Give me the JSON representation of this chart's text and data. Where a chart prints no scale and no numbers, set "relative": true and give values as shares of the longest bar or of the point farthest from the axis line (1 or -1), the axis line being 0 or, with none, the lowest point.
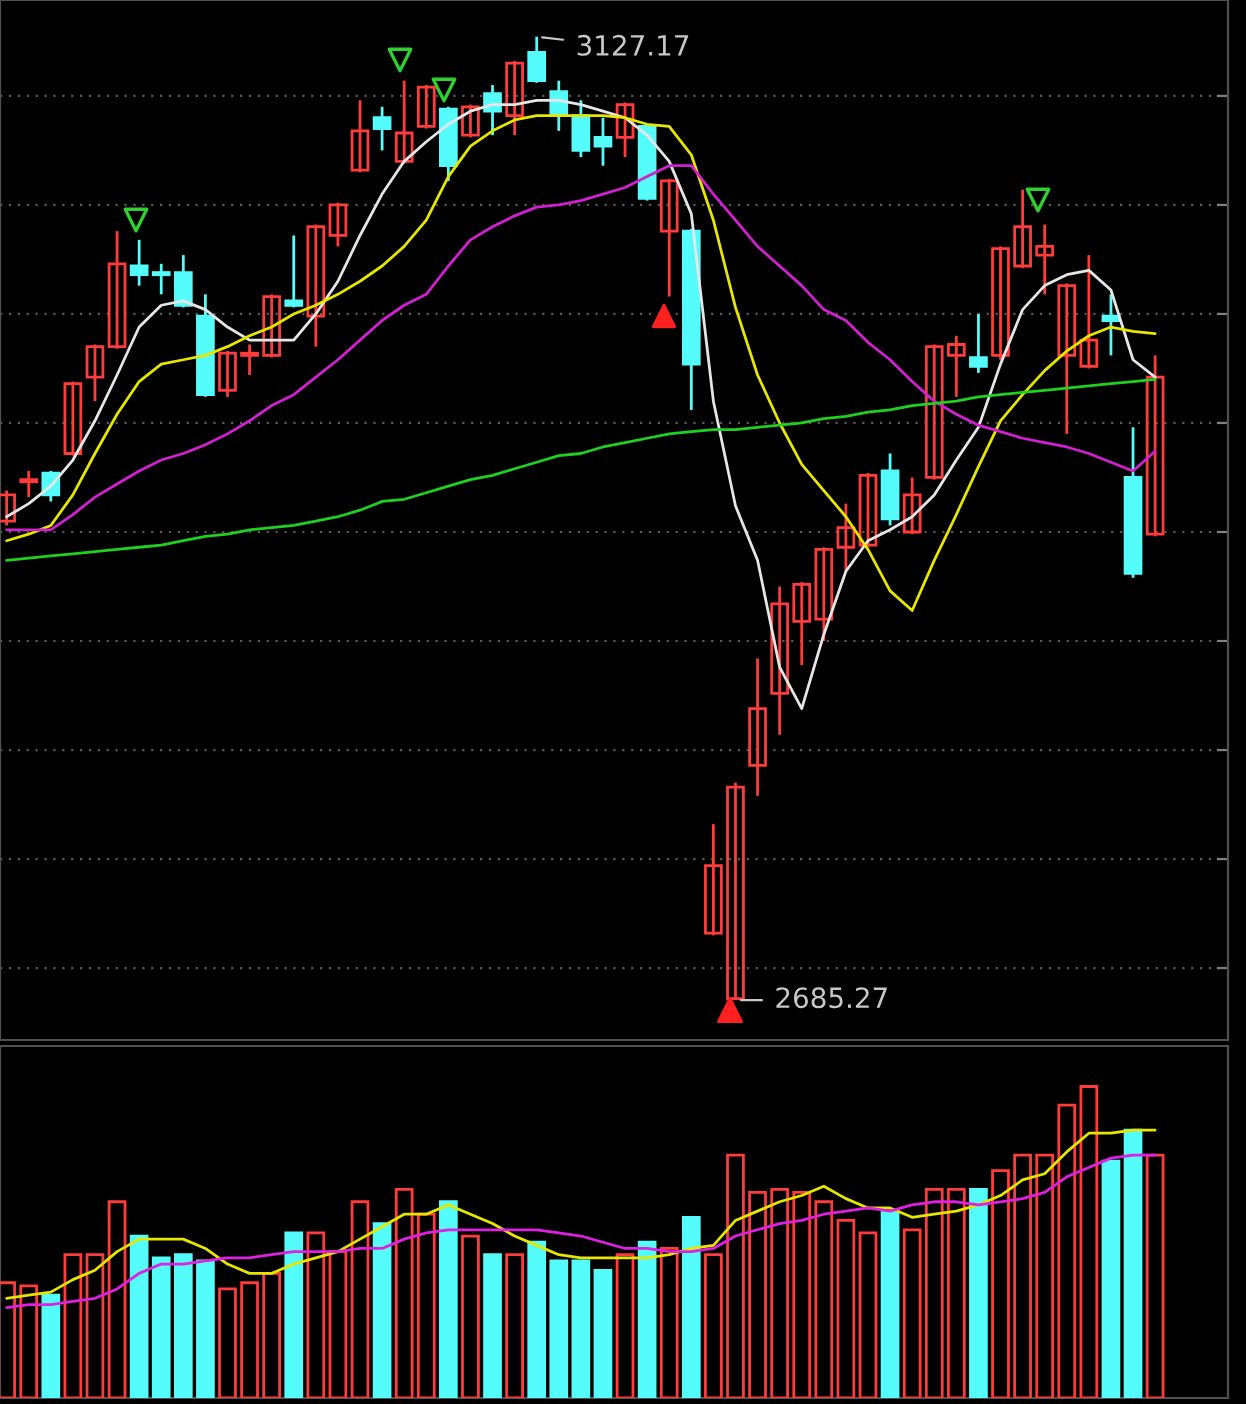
{
  "chart_data": [
    {
      "type": "candlestick",
      "categories": [
        null,
        null,
        null,
        null,
        null,
        null,
        null,
        null,
        null,
        null,
        null,
        null,
        null,
        null,
        null,
        null,
        null,
        null,
        null,
        null,
        null,
        null,
        null,
        null,
        null,
        null,
        null,
        null,
        null,
        null,
        null,
        null,
        null,
        null,
        null,
        null,
        null,
        null,
        null,
        null,
        null,
        null,
        null,
        null,
        null,
        null,
        null,
        null,
        null,
        null,
        null,
        null,
        null
      ],
      "ohlc": [
        [
          2905,
          2919,
          2903,
          2917
        ],
        [
          2923,
          2928,
          2916,
          2924
        ],
        [
          2927,
          2928,
          2914,
          2917
        ],
        [
          2936,
          2969,
          2935,
          2968
        ],
        [
          2971,
          2986,
          2960,
          2985
        ],
        [
          2985,
          3038,
          2984,
          3023
        ],
        [
          3022,
          3034,
          3013,
          3018
        ],
        [
          3019,
          3023,
          3009,
          3018
        ],
        [
          3019,
          3027,
          3003,
          3004
        ],
        [
          2999,
          3009,
          2962,
          2963
        ],
        [
          2965,
          2983,
          2962,
          2982
        ],
        [
          2981,
          2986,
          2972,
          2982
        ],
        [
          2981,
          3009,
          2980,
          3008
        ],
        [
          3006,
          3036,
          3003,
          3004
        ],
        [
          2999,
          3041,
          2985,
          3040
        ],
        [
          3036,
          3051,
          3031,
          3050
        ],
        [
          3066,
          3098,
          3065,
          3084
        ],
        [
          3090,
          3095,
          3075,
          3085
        ],
        [
          3070,
          3107,
          3069,
          3083
        ],
        [
          3086,
          3105,
          3085,
          3104
        ],
        [
          3094,
          3095,
          3061,
          3068
        ],
        [
          3082,
          3096,
          3081,
          3095
        ],
        [
          3101,
          3105,
          3082,
          3093
        ],
        [
          3091,
          3116,
          3082,
          3115
        ],
        [
          3120,
          3127.17,
          3106,
          3107
        ],
        [
          3102,
          3107,
          3084,
          3091
        ],
        [
          3091,
          3098,
          3072,
          3075
        ],
        [
          3081,
          3090,
          3068,
          3077
        ],
        [
          3081,
          3097,
          3072,
          3096
        ],
        [
          3086,
          3087,
          3052,
          3053
        ],
        [
          3038,
          3062,
          3008,
          3061
        ],
        [
          3038,
          3039,
          2956,
          2977
        ],
        [
          2716,
          2766,
          2715,
          2747
        ],
        [
          2686,
          2785,
          2685.27,
          2783
        ],
        [
          2793,
          2842,
          2779,
          2819
        ],
        [
          2826,
          2875,
          2807,
          2867
        ],
        [
          2859,
          2877,
          2839,
          2876
        ],
        [
          2860,
          2893,
          2850,
          2892
        ],
        [
          2893,
          2913,
          2882,
          2902
        ],
        [
          2894,
          2927,
          2893,
          2926
        ],
        [
          2928,
          2936,
          2903,
          2906
        ],
        [
          2900,
          2925,
          2899,
          2917
        ],
        [
          2925,
          2986,
          2924,
          2985
        ],
        [
          2981,
          2990,
          2962,
          2986
        ],
        [
          2980,
          3000,
          2973,
          2976
        ],
        [
          2981,
          3031,
          2979,
          3030
        ],
        [
          3022,
          3057,
          3021,
          3040
        ],
        [
          3027,
          3041,
          3009,
          3031
        ],
        [
          2981,
          3014,
          2945,
          3013
        ],
        [
          2976,
          3027,
          2975,
          2988
        ],
        [
          2999,
          3009,
          2981,
          2997
        ],
        [
          2925,
          2948,
          2879,
          2881
        ],
        [
          2899,
          2981,
          2898,
          2971
        ]
      ],
      "colors": [
        "#ff3c3c",
        "#ff3c3c",
        "#54fcfc",
        "#ff3c3c",
        "#ff3c3c",
        "#ff3c3c",
        "#54fcfc",
        "#54fcfc",
        "#54fcfc",
        "#54fcfc",
        "#ff3c3c",
        "#ff3c3c",
        "#ff3c3c",
        "#54fcfc",
        "#ff3c3c",
        "#ff3c3c",
        "#ff3c3c",
        "#54fcfc",
        "#ff3c3c",
        "#ff3c3c",
        "#54fcfc",
        "#ff3c3c",
        "#54fcfc",
        "#ff3c3c",
        "#54fcfc",
        "#54fcfc",
        "#54fcfc",
        "#54fcfc",
        "#ff3c3c",
        "#54fcfc",
        "#ff3c3c",
        "#54fcfc",
        "#ff3c3c",
        "#ff3c3c",
        "#ff3c3c",
        "#ff3c3c",
        "#ff3c3c",
        "#ff3c3c",
        "#ff3c3c",
        "#ff3c3c",
        "#54fcfc",
        "#ff3c3c",
        "#ff3c3c",
        "#ff3c3c",
        "#54fcfc",
        "#ff3c3c",
        "#ff3c3c",
        "#ff3c3c",
        "#ff3c3c",
        "#ff3c3c",
        "#54fcfc",
        "#54fcfc",
        "#ff3c3c"
      ],
      "series": [
        {
          "type": "line",
          "color": "#e6e6e6",
          "values": [
            2907,
            2913,
            2921,
            2933,
            2951,
            2972,
            2994,
            3004,
            3006,
            3002,
            2994,
            2988,
            2988,
            2988,
            3000,
            3015,
            3036,
            3055,
            3070,
            3079,
            3087,
            3093,
            3096,
            3096,
            3098,
            3098,
            3096,
            3093,
            3090,
            3082,
            3070,
            3046,
            2960,
            2912,
            2887,
            2838,
            2819,
            2853,
            2882,
            2896,
            2901,
            2907,
            2917,
            2933,
            2948,
            2977,
            3002,
            3013,
            3018,
            3020,
            3011,
            2979,
            2971
          ]
        },
        {
          "type": "line",
          "color": "#e6e600",
          "values": [
            2896,
            2899,
            2903,
            2917,
            2936,
            2954,
            2969,
            2977,
            2979,
            2981,
            2985,
            2990,
            2994,
            3000,
            3004,
            3009,
            3015,
            3022,
            3031,
            3043,
            3063,
            3077,
            3084,
            3089,
            3091,
            3091,
            3091,
            3091,
            3090,
            3087,
            3086,
            3073,
            3043,
            3003,
            2972,
            2950,
            2931,
            2919,
            2907,
            2892,
            2873,
            2864,
            2887,
            2908,
            2930,
            2951,
            2963,
            2974,
            2983,
            2990,
            2994,
            2992,
            2991
          ]
        },
        {
          "type": "line",
          "color": "#d020d0",
          "values": [
            2901,
            2901,
            2901,
            2908,
            2916,
            2922,
            2928,
            2933,
            2936,
            2940,
            2945,
            2951,
            2958,
            2963,
            2971,
            2979,
            2988,
            2997,
            3004,
            3009,
            3022,
            3034,
            3040,
            3045,
            3049,
            3050,
            3052,
            3055,
            3058,
            3063,
            3068,
            3068,
            3055,
            3043,
            3031,
            3022,
            3013,
            3002,
            2997,
            2987,
            2979,
            2969,
            2960,
            2954,
            2949,
            2946,
            2943,
            2941,
            2939,
            2936,
            2932,
            2928,
            2937
          ]
        },
        {
          "type": "line",
          "color": "#20d020",
          "values": [
            2887,
            2888,
            2889,
            2890,
            2891,
            2892,
            2893,
            2894,
            2896,
            2898,
            2899,
            2901,
            2902,
            2903,
            2905,
            2907,
            2910,
            2914,
            2915,
            2918,
            2921,
            2924,
            2926,
            2929,
            2932,
            2935,
            2936,
            2939,
            2941,
            2943,
            2945,
            2946,
            2947,
            2947,
            2948,
            2949,
            2950,
            2952,
            2953,
            2955,
            2956,
            2958,
            2959,
            2960,
            2962,
            2963,
            2964,
            2965,
            2966,
            2967,
            2968,
            2969,
            2970
          ]
        }
      ],
      "ylim": [
        2667,
        3144
      ],
      "yticks": [
        {
          "value": 2700,
          "label": null
        },
        {
          "value": 2750,
          "label": null
        },
        {
          "value": 2800,
          "label": null
        },
        {
          "value": 2850,
          "label": null
        },
        {
          "value": 2900,
          "label": null
        },
        {
          "value": 2950,
          "label": null
        },
        {
          "value": 3000,
          "label": null
        },
        {
          "value": 3050,
          "label": null
        },
        {
          "value": 3100,
          "label": null
        }
      ],
      "grid": "y",
      "annotations": [
        "3127.17",
        "2685.27"
      ]
    },
    {
      "type": "bar",
      "relative": true,
      "categories": [
        null,
        null,
        null,
        null,
        null,
        null,
        null,
        null,
        null,
        null,
        null,
        null,
        null,
        null,
        null,
        null,
        null,
        null,
        null,
        null,
        null,
        null,
        null,
        null,
        null,
        null,
        null,
        null,
        null,
        null,
        null,
        null,
        null,
        null,
        null,
        null,
        null,
        null,
        null,
        null,
        null,
        null,
        null,
        null,
        null,
        null,
        null,
        null,
        null,
        null,
        null,
        null,
        null
      ],
      "series": [
        {
          "type": "bar",
          "colors": [
            "#ff3c3c",
            "#ff3c3c",
            "#54fcfc",
            "#ff3c3c",
            "#ff3c3c",
            "#ff3c3c",
            "#54fcfc",
            "#54fcfc",
            "#54fcfc",
            "#54fcfc",
            "#ff3c3c",
            "#ff3c3c",
            "#ff3c3c",
            "#54fcfc",
            "#ff3c3c",
            "#ff3c3c",
            "#ff3c3c",
            "#54fcfc",
            "#ff3c3c",
            "#ff3c3c",
            "#54fcfc",
            "#ff3c3c",
            "#54fcfc",
            "#ff3c3c",
            "#54fcfc",
            "#54fcfc",
            "#54fcfc",
            "#54fcfc",
            "#ff3c3c",
            "#54fcfc",
            "#ff3c3c",
            "#54fcfc",
            "#ff3c3c",
            "#ff3c3c",
            "#ff3c3c",
            "#ff3c3c",
            "#ff3c3c",
            "#ff3c3c",
            "#ff3c3c",
            "#ff3c3c",
            "#54fcfc",
            "#ff3c3c",
            "#ff3c3c",
            "#ff3c3c",
            "#54fcfc",
            "#ff3c3c",
            "#ff3c3c",
            "#ff3c3c",
            "#ff3c3c",
            "#ff3c3c",
            "#54fcfc",
            "#54fcfc",
            "#ff3c3c"
          ],
          "values": [
            0.37,
            0.36,
            0.33,
            0.46,
            0.46,
            0.63,
            0.52,
            0.45,
            0.46,
            0.44,
            0.35,
            0.37,
            0.4,
            0.53,
            0.53,
            0.47,
            0.63,
            0.56,
            0.67,
            0.59,
            0.63,
            0.52,
            0.46,
            0.46,
            0.5,
            0.44,
            0.44,
            0.41,
            0.46,
            0.5,
            0.48,
            0.58,
            0.46,
            0.78,
            0.66,
            0.67,
            0.66,
            0.63,
            0.57,
            0.53,
            0.6,
            0.54,
            0.67,
            0.67,
            0.67,
            0.73,
            0.78,
            0.78,
            0.94,
            1,
            0.76,
            0.86,
            0.78
          ]
        },
        {
          "type": "line",
          "color": "#e6e600",
          "values": [
            0.32,
            0.33,
            0.34,
            0.38,
            0.41,
            0.47,
            0.51,
            0.51,
            0.51,
            0.48,
            0.43,
            0.4,
            0.4,
            0.43,
            0.45,
            0.47,
            0.51,
            0.55,
            0.59,
            0.59,
            0.62,
            0.59,
            0.56,
            0.52,
            0.49,
            0.46,
            0.45,
            0.45,
            0.45,
            0.45,
            0.46,
            0.48,
            0.49,
            0.57,
            0.6,
            0.63,
            0.65,
            0.68,
            0.64,
            0.61,
            0.61,
            0.58,
            0.59,
            0.6,
            0.62,
            0.65,
            0.7,
            0.72,
            0.79,
            0.85,
            0.85,
            0.86,
            0.86
          ]
        },
        {
          "type": "line",
          "color": "#e020e0",
          "values": [
            0.29,
            0.3,
            0.3,
            0.31,
            0.32,
            0.35,
            0.4,
            0.43,
            0.43,
            0.44,
            0.45,
            0.45,
            0.46,
            0.47,
            0.47,
            0.47,
            0.48,
            0.48,
            0.51,
            0.53,
            0.54,
            0.54,
            0.54,
            0.54,
            0.54,
            0.53,
            0.52,
            0.5,
            0.48,
            0.48,
            0.47,
            0.47,
            0.48,
            0.52,
            0.54,
            0.56,
            0.57,
            0.59,
            0.6,
            0.61,
            0.6,
            0.62,
            0.63,
            0.63,
            0.62,
            0.63,
            0.64,
            0.66,
            0.71,
            0.74,
            0.77,
            0.78,
            0.78
          ]
        }
      ]
    }
  ]
}
